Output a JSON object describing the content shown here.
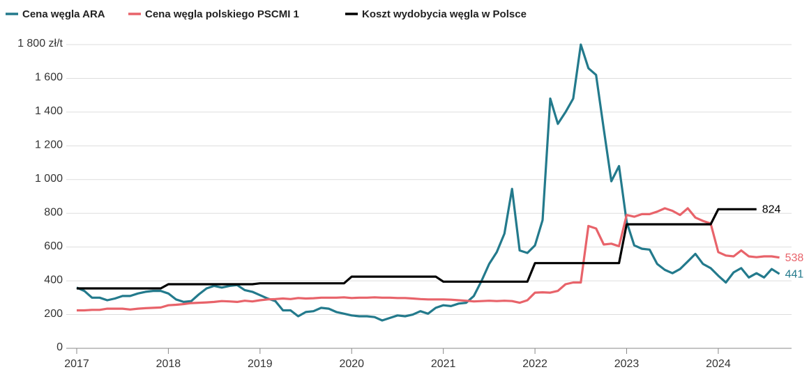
{
  "chart_data": {
    "type": "line",
    "x": [
      2017,
      2017.083,
      2017.167,
      2017.25,
      2017.333,
      2017.417,
      2017.5,
      2017.583,
      2017.667,
      2017.75,
      2017.833,
      2017.917,
      2018,
      2018.083,
      2018.167,
      2018.25,
      2018.333,
      2018.417,
      2018.5,
      2018.583,
      2018.667,
      2018.75,
      2018.833,
      2018.917,
      2019,
      2019.083,
      2019.167,
      2019.25,
      2019.333,
      2019.417,
      2019.5,
      2019.583,
      2019.667,
      2019.75,
      2019.833,
      2019.917,
      2020,
      2020.083,
      2020.167,
      2020.25,
      2020.333,
      2020.417,
      2020.5,
      2020.583,
      2020.667,
      2020.75,
      2020.833,
      2020.917,
      2021,
      2021.083,
      2021.167,
      2021.25,
      2021.333,
      2021.417,
      2021.5,
      2021.583,
      2021.667,
      2021.75,
      2021.833,
      2021.917,
      2022,
      2022.083,
      2022.167,
      2022.25,
      2022.333,
      2022.417,
      2022.5,
      2022.583,
      2022.667,
      2022.75,
      2022.833,
      2022.917,
      2023,
      2023.083,
      2023.167,
      2023.25,
      2023.333,
      2023.417,
      2023.5,
      2023.583,
      2023.667,
      2023.75,
      2023.833,
      2023.917,
      2024,
      2024.083,
      2024.167,
      2024.25,
      2024.333,
      2024.417,
      2024.5,
      2024.583,
      2024.667
    ],
    "series": [
      {
        "name": "Cena węgla ARA",
        "color": "#237a8c",
        "values": [
          360,
          340,
          300,
          300,
          285,
          295,
          310,
          310,
          325,
          335,
          340,
          340,
          325,
          290,
          275,
          280,
          320,
          355,
          370,
          360,
          370,
          375,
          345,
          335,
          315,
          295,
          280,
          225,
          225,
          190,
          215,
          220,
          240,
          235,
          215,
          205,
          195,
          190,
          190,
          185,
          165,
          180,
          195,
          190,
          200,
          220,
          205,
          240,
          255,
          250,
          265,
          270,
          310,
          400,
          500,
          570,
          680,
          945,
          580,
          565,
          610,
          760,
          1480,
          1330,
          1400,
          1480,
          1800,
          1660,
          1620,
          1300,
          990,
          1080,
          750,
          610,
          590,
          585,
          500,
          465,
          445,
          470,
          515,
          560,
          500,
          475,
          430,
          390,
          450,
          475,
          420,
          445,
          420,
          470,
          441
        ]
      },
      {
        "name": "Cena węgla polskiego PSCMI 1",
        "color": "#e8636a",
        "values": [
          225,
          225,
          228,
          228,
          235,
          235,
          235,
          230,
          235,
          238,
          240,
          242,
          255,
          258,
          262,
          268,
          270,
          272,
          275,
          280,
          278,
          275,
          282,
          278,
          285,
          290,
          292,
          295,
          292,
          298,
          295,
          297,
          300,
          300,
          300,
          302,
          298,
          300,
          300,
          302,
          300,
          300,
          298,
          298,
          295,
          292,
          290,
          290,
          290,
          288,
          285,
          282,
          278,
          280,
          282,
          280,
          282,
          280,
          270,
          285,
          330,
          332,
          330,
          340,
          380,
          390,
          390,
          725,
          710,
          615,
          620,
          605,
          790,
          780,
          795,
          795,
          810,
          830,
          815,
          790,
          830,
          775,
          755,
          740,
          570,
          550,
          545,
          580,
          545,
          540,
          545,
          545,
          538
        ]
      },
      {
        "name": "Koszt wydobycia węgla w Polsce",
        "color": "#000000",
        "values": [
          355,
          355,
          355,
          355,
          355,
          355,
          355,
          355,
          355,
          355,
          355,
          355,
          380,
          380,
          380,
          380,
          380,
          380,
          380,
          380,
          380,
          380,
          380,
          380,
          385,
          385,
          385,
          385,
          385,
          385,
          385,
          385,
          385,
          385,
          385,
          385,
          425,
          425,
          425,
          425,
          425,
          425,
          425,
          425,
          425,
          425,
          425,
          425,
          395,
          395,
          395,
          395,
          395,
          395,
          395,
          395,
          395,
          395,
          395,
          395,
          505,
          505,
          505,
          505,
          505,
          505,
          505,
          505,
          505,
          505,
          505,
          505,
          735,
          735,
          735,
          735,
          735,
          735,
          735,
          735,
          735,
          735,
          735,
          735,
          824,
          824,
          824,
          824,
          824,
          824,
          null,
          null,
          null
        ]
      }
    ],
    "xlim": [
      2017,
      2024.83
    ],
    "xticks": [
      2017,
      2018,
      2019,
      2020,
      2021,
      2022,
      2023,
      2024
    ],
    "ylim": [
      0,
      1800
    ],
    "yticks": [
      0,
      200,
      400,
      600,
      800,
      {
        "value": 1000,
        "label": "1 000"
      },
      {
        "value": 1200,
        "label": "1 200"
      },
      {
        "value": 1400,
        "label": "1 400"
      },
      {
        "value": 1600,
        "label": "1 600"
      },
      {
        "value": 1800,
        "label": "1 800 zł/t"
      }
    ],
    "grid": true
  }
}
